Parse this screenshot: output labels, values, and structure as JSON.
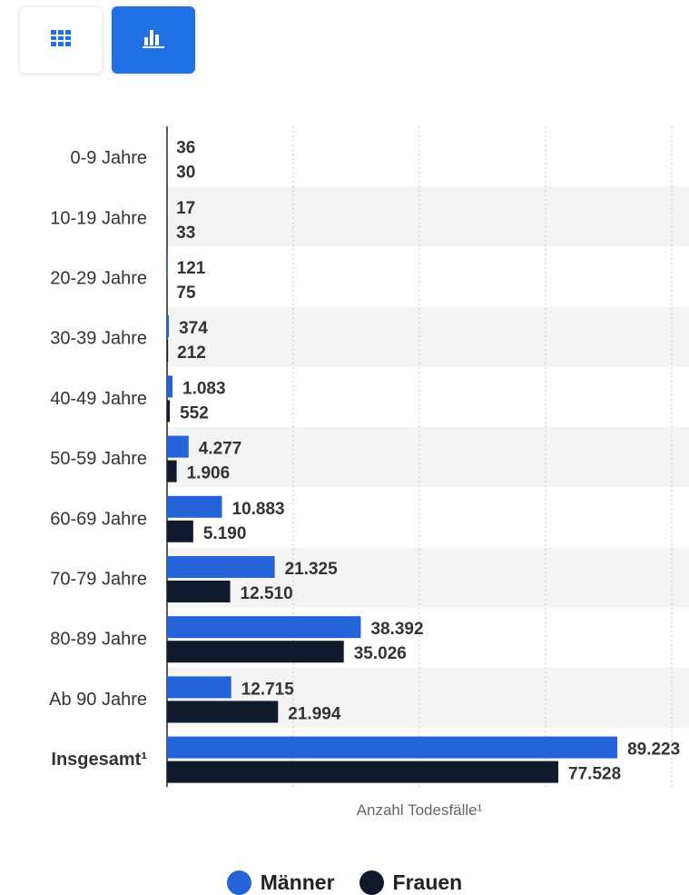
{
  "toolbar": {
    "table_view": {
      "icon": "table-grid-icon"
    },
    "chart_view": {
      "icon": "bar-chart-icon"
    }
  },
  "chart_data": {
    "type": "bar",
    "orientation": "horizontal",
    "categories": [
      "0-9 Jahre",
      "10-19 Jahre",
      "20-29 Jahre",
      "30-39 Jahre",
      "40-49 Jahre",
      "50-59 Jahre",
      "60-69 Jahre",
      "70-79 Jahre",
      "80-89 Jahre",
      "Ab 90 Jahre",
      "Insgesamt¹"
    ],
    "series": [
      {
        "name": "Männer",
        "color": "#2563d9",
        "values": [
          36,
          17,
          121,
          374,
          1083,
          4277,
          10883,
          21325,
          38392,
          12715,
          89223
        ],
        "labels": [
          "36",
          "17",
          "121",
          "374",
          "1.083",
          "4.277",
          "10.883",
          "21.325",
          "38.392",
          "12.715",
          "89.223"
        ]
      },
      {
        "name": "Frauen",
        "color": "#0f1b2d",
        "values": [
          30,
          33,
          75,
          212,
          552,
          1906,
          5190,
          12510,
          35026,
          21994,
          77528
        ],
        "labels": [
          "30",
          "33",
          "75",
          "212",
          "552",
          "1.906",
          "5.190",
          "12.510",
          "35.026",
          "21.994",
          "77.528"
        ]
      }
    ],
    "xlabel": "Anzahl Todesfälle¹",
    "xlim": [
      0,
      100000
    ],
    "grid": true,
    "legend_position": "bottom",
    "highlight_category": "Insgesamt¹",
    "band_color": "#f4f4f4",
    "grid_color": "#c9c9c9",
    "label_color": "#333333"
  }
}
